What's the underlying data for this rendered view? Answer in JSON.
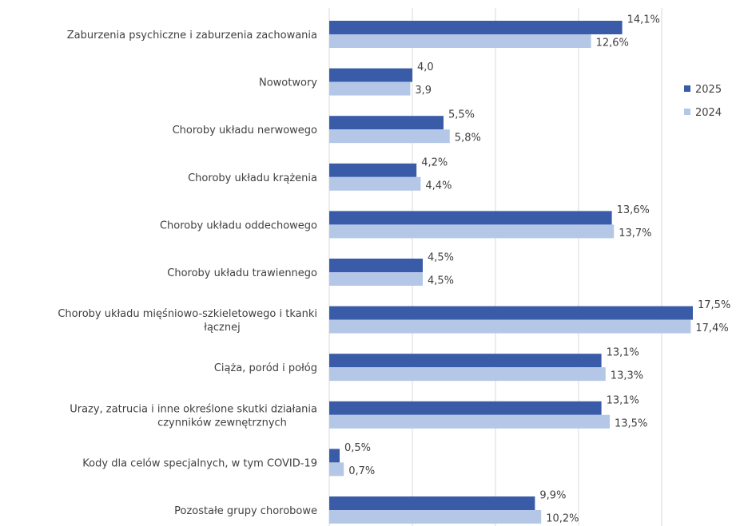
{
  "chart_data": {
    "type": "bar",
    "orientation": "horizontal",
    "categories": [
      [
        "Zaburzenia psychiczne i zaburzenia zachowania"
      ],
      [
        "Nowotwory"
      ],
      [
        "Choroby układu nerwowego"
      ],
      [
        "Choroby układu krążenia"
      ],
      [
        "Choroby układu oddechowego"
      ],
      [
        "Choroby układu trawiennego"
      ],
      [
        "Choroby układu mięśniowo-szkieletowego i tkanki",
        "łącznej"
      ],
      [
        "Ciąża, poród i połóg"
      ],
      [
        "Urazy, zatrucia i inne określone skutki działania",
        "czynników zewnętrznych"
      ],
      [
        "Kody dla celów specjalnych, w tym COVID-19"
      ],
      [
        "Pozostałe grupy chorobowe"
      ]
    ],
    "series": [
      {
        "name": "2025",
        "color": "#3A5BA8",
        "values": [
          14.1,
          4.0,
          5.5,
          4.2,
          13.6,
          4.5,
          17.5,
          13.1,
          13.1,
          0.5,
          9.9
        ],
        "labels": [
          "14,1%",
          "4,0",
          "5,5%",
          "4,2%",
          "13,6%",
          "4,5%",
          "17,5%",
          "13,1%",
          "13,1%",
          "0,5%",
          "9,9%"
        ]
      },
      {
        "name": "2024",
        "color": "#B4C7E7",
        "values": [
          12.6,
          3.9,
          5.8,
          4.4,
          13.7,
          4.5,
          17.4,
          13.3,
          13.5,
          0.7,
          10.2
        ],
        "labels": [
          "12,6%",
          "3,9",
          "5,8%",
          "4,4%",
          "13,7%",
          "4,5%",
          "17,4%",
          "13,3%",
          "13,5%",
          "0,7%",
          "10,2%"
        ]
      }
    ],
    "xlim": [
      0,
      20
    ],
    "gridlines": [
      0,
      4,
      8,
      12,
      16,
      20
    ],
    "grid": true,
    "legend": "right"
  }
}
